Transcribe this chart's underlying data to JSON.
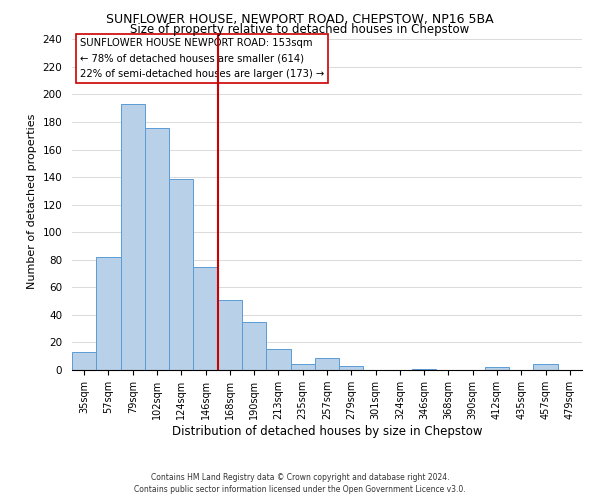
{
  "title": "SUNFLOWER HOUSE, NEWPORT ROAD, CHEPSTOW, NP16 5BA",
  "subtitle": "Size of property relative to detached houses in Chepstow",
  "xlabel": "Distribution of detached houses by size in Chepstow",
  "ylabel": "Number of detached properties",
  "bin_labels": [
    "35sqm",
    "57sqm",
    "79sqm",
    "102sqm",
    "124sqm",
    "146sqm",
    "168sqm",
    "190sqm",
    "213sqm",
    "235sqm",
    "257sqm",
    "279sqm",
    "301sqm",
    "324sqm",
    "346sqm",
    "368sqm",
    "390sqm",
    "412sqm",
    "435sqm",
    "457sqm",
    "479sqm"
  ],
  "bar_heights": [
    13,
    82,
    193,
    176,
    139,
    75,
    51,
    35,
    15,
    4,
    9,
    3,
    0,
    0,
    1,
    0,
    0,
    2,
    0,
    4,
    0
  ],
  "bar_color": "#b8d0e8",
  "bar_edge_color": "#5b9bd5",
  "vline_x": 5.5,
  "vline_color": "#cc0000",
  "annotation_title": "SUNFLOWER HOUSE NEWPORT ROAD: 153sqm",
  "annotation_line1": "← 78% of detached houses are smaller (614)",
  "annotation_line2": "22% of semi-detached houses are larger (173) →",
  "annotation_box_color": "white",
  "annotation_box_edge": "#cc0000",
  "ylim": [
    0,
    245
  ],
  "yticks": [
    0,
    20,
    40,
    60,
    80,
    100,
    120,
    140,
    160,
    180,
    200,
    220,
    240
  ],
  "footer1": "Contains HM Land Registry data © Crown copyright and database right 2024.",
  "footer2": "Contains public sector information licensed under the Open Government Licence v3.0."
}
